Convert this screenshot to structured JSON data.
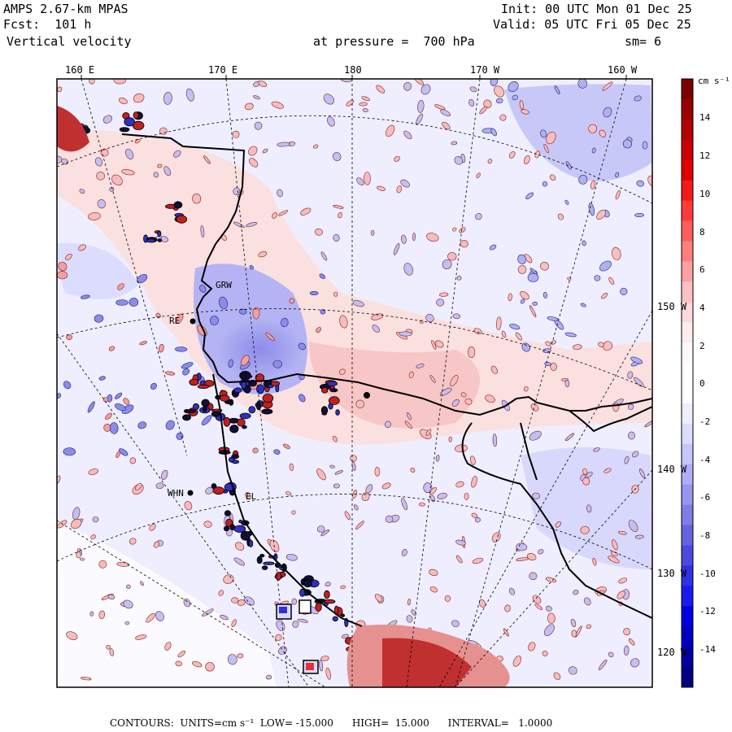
{
  "header": {
    "model": "AMPS 2.67-km MPAS",
    "forecast": "Fcst:  101 h",
    "field": "Vertical velocity",
    "init": "Init: 00 UTC Mon 01 Dec 25",
    "valid": "Valid: 05 UTC Fri 05 Dec 25",
    "level": "at pressure =  700 hPa",
    "smoothing": "sm= 6"
  },
  "map": {
    "top_lon_labels": [
      "160 E",
      "170 E",
      "180",
      "170 W",
      "160 W"
    ],
    "right_lon_labels": [
      "150 W",
      "140 W",
      "130 W",
      "120 W"
    ],
    "station_labels": [
      "GRW",
      "RE",
      "WHN",
      "EL"
    ],
    "colors": {
      "land_ice": "#ffffff",
      "ocean_calm": "#eeeeff",
      "coast": "#000000"
    }
  },
  "colorbar": {
    "units": "cm s⁻¹",
    "tick_labels": [
      "14",
      "12",
      "10",
      "8",
      "6",
      "4",
      "2",
      "0",
      "-2",
      "-4",
      "-6",
      "-8",
      "-10",
      "-12",
      "-14"
    ],
    "colors": [
      "#7a0000",
      "#990000",
      "#b30000",
      "#cc0000",
      "#e00000",
      "#f21a1a",
      "#ff3a3a",
      "#ff5c5c",
      "#ff7e7e",
      "#ffa0a0",
      "#ffc0c0",
      "#ffd9d9",
      "#ffecec",
      "#fff8f8",
      "#ffffff",
      "#ffffff",
      "#eeeeff",
      "#dcdcff",
      "#c6c6ff",
      "#aeaefa",
      "#9696f0",
      "#7e7ee6",
      "#6464e0",
      "#4a4ae0",
      "#3030e6",
      "#1a1aea",
      "#0000e0",
      "#0000c0",
      "#0000a0",
      "#000080"
    ]
  },
  "footer": "CONTOURS:  UNITS=cm s⁻¹  LOW= -15.000      HIGH=  15.000      INTERVAL=   1.0000"
}
